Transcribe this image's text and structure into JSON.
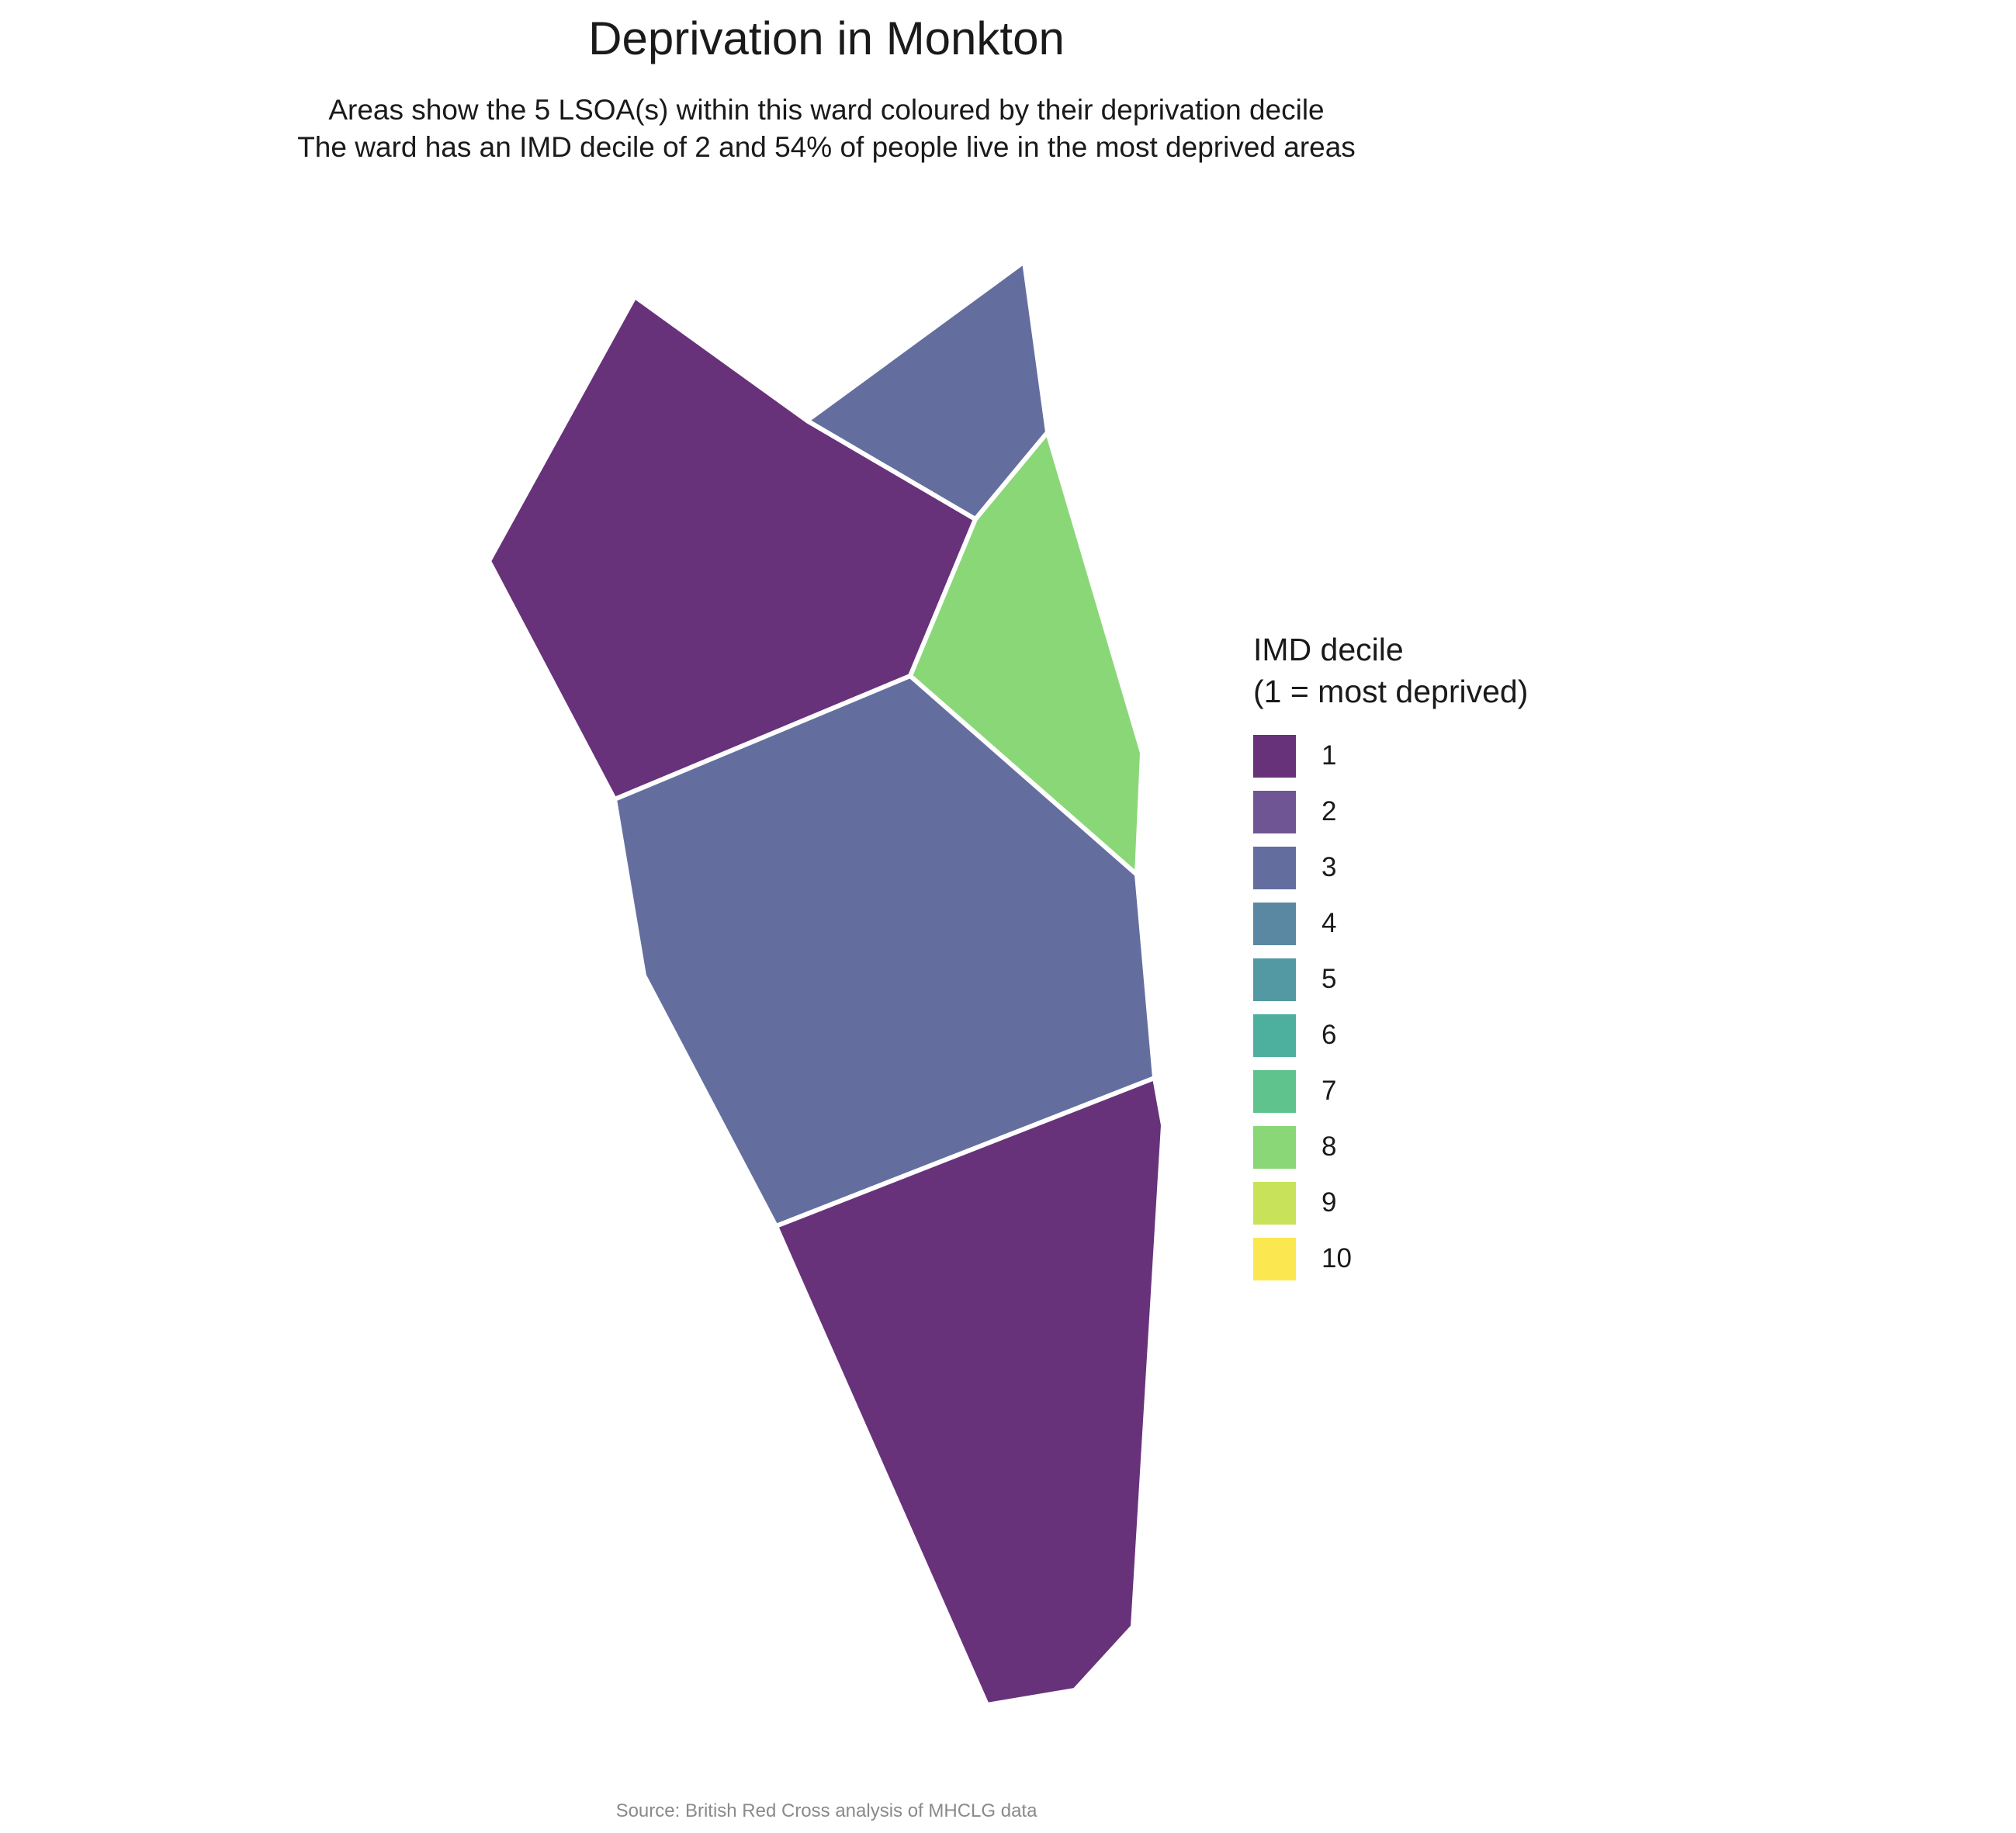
{
  "title": "Deprivation in Monkton",
  "subtitle": [
    "Areas show the 5 LSOA(s) within this ward coloured by their deprivation decile",
    "The ward has an IMD decile of 2 and 54% of people live in the most deprived areas"
  ],
  "legend": {
    "title_lines": [
      "IMD decile",
      "(1 = most deprived)"
    ],
    "items": [
      {
        "label": "1",
        "color": "#68327A"
      },
      {
        "label": "2",
        "color": "#705594"
      },
      {
        "label": "3",
        "color": "#646E9E"
      },
      {
        "label": "4",
        "color": "#5A88A2"
      },
      {
        "label": "5",
        "color": "#5299A3"
      },
      {
        "label": "6",
        "color": "#4DB09F"
      },
      {
        "label": "7",
        "color": "#5FC38E"
      },
      {
        "label": "8",
        "color": "#8AD778"
      },
      {
        "label": "9",
        "color": "#C8E35A"
      },
      {
        "label": "10",
        "color": "#FBE750"
      }
    ]
  },
  "areas": [
    {
      "decile": 1
    },
    {
      "decile": 3
    },
    {
      "decile": 8
    },
    {
      "decile": 3
    },
    {
      "decile": 1
    }
  ],
  "caption": "Source: British Red Cross analysis of MHCLG data"
}
